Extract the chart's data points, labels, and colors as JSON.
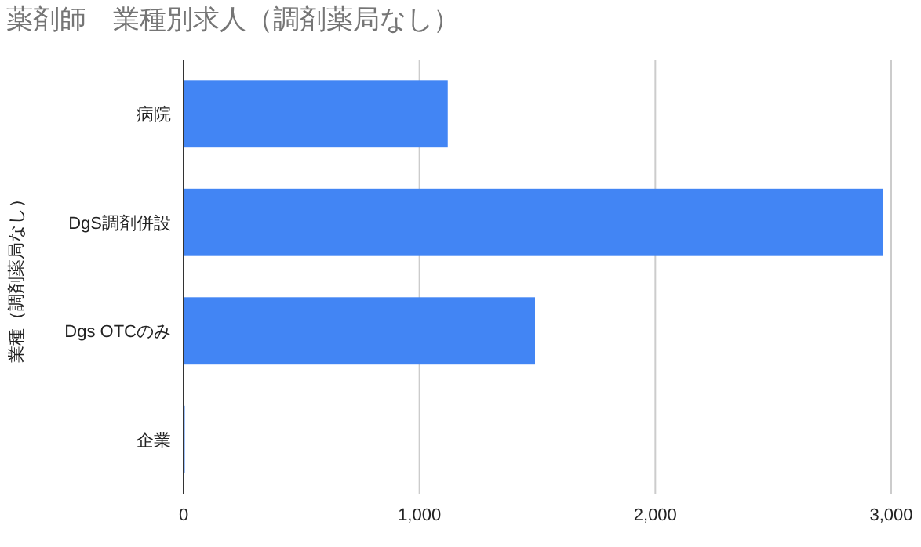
{
  "chart_data": {
    "type": "bar",
    "orientation": "horizontal",
    "title": "薬剤師　業種別求人（調剤薬局なし）",
    "ylabel": "業種（調剤薬局なし）",
    "categories": [
      "病院",
      "DgS調剤併設",
      "Dgs OTCのみ",
      "企業"
    ],
    "series": [
      {
        "color": "#4285f4",
        "values": [
          1120,
          2965,
          1490,
          5
        ]
      }
    ],
    "xlim": [
      0,
      3000
    ],
    "xticks": [
      {
        "value": 0,
        "label": "0"
      },
      {
        "value": 1000,
        "label": "1,000"
      },
      {
        "value": 2000,
        "label": "2,000"
      },
      {
        "value": 3000,
        "label": "3,000"
      }
    ],
    "grid": "x"
  }
}
